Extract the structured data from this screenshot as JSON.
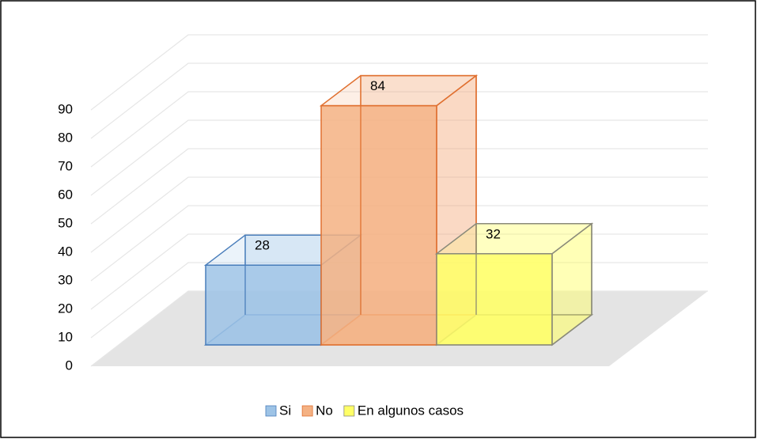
{
  "chart_data": {
    "type": "bar3d",
    "categories": [
      null
    ],
    "series": [
      {
        "name": "Si",
        "color": "#9dc3e6",
        "values": [
          28
        ]
      },
      {
        "name": "No",
        "color": "#f4b183",
        "values": [
          84
        ]
      },
      {
        "name": "En algunos casos",
        "color": "#ffff66",
        "values": [
          32
        ]
      }
    ],
    "ylim": [
      0,
      90
    ],
    "yticks": [
      0,
      10,
      20,
      30,
      40,
      50,
      60,
      70,
      80,
      90
    ],
    "grid": true,
    "legend": "bottom"
  }
}
